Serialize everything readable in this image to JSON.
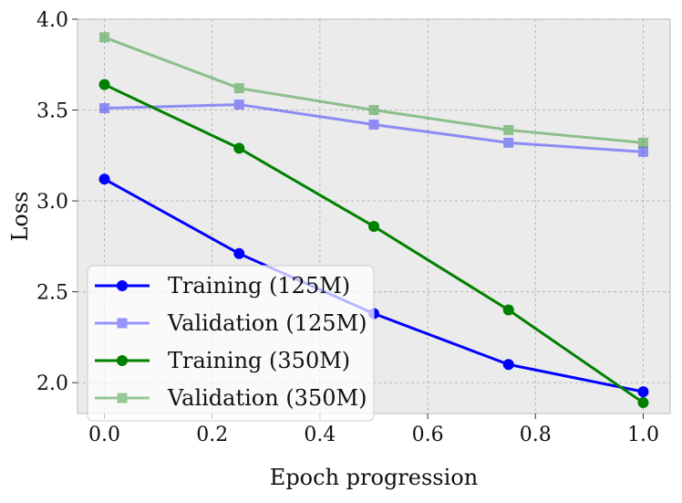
{
  "chart_data": {
    "type": "line",
    "title": "",
    "xlabel": "Epoch progression",
    "ylabel": "Loss",
    "xlim": [
      -0.05,
      1.05
    ],
    "ylim": [
      1.83,
      4.0
    ],
    "x": [
      0.0,
      0.25,
      0.5,
      0.75,
      1.0
    ],
    "xticks": [
      0.0,
      0.2,
      0.4,
      0.6,
      0.8,
      1.0
    ],
    "xtick_labels": [
      "0.0",
      "0.2",
      "0.4",
      "0.6",
      "0.8",
      "1.0"
    ],
    "yticks": [
      2.0,
      2.5,
      3.0,
      3.5,
      4.0
    ],
    "ytick_labels": [
      "2.0",
      "2.5",
      "3.0",
      "3.5",
      "4.0"
    ],
    "grid": true,
    "legend_position": "lower-left",
    "series": [
      {
        "name": "Training (125M)",
        "values": [
          3.12,
          2.71,
          2.38,
          2.1,
          1.95
        ],
        "color": "#0000ff",
        "marker": "circle",
        "opacity": 1.0
      },
      {
        "name": "Validation (125M)",
        "values": [
          3.51,
          3.53,
          3.42,
          3.32,
          3.27
        ],
        "color": "#0000ff",
        "marker": "square",
        "opacity": 0.4
      },
      {
        "name": "Training (350M)",
        "values": [
          3.64,
          3.29,
          2.86,
          2.4,
          1.89
        ],
        "color": "#008000",
        "marker": "circle",
        "opacity": 1.0
      },
      {
        "name": "Validation (350M)",
        "values": [
          3.9,
          3.62,
          3.5,
          3.39,
          3.32
        ],
        "color": "#008000",
        "marker": "square",
        "opacity": 0.4
      }
    ]
  }
}
